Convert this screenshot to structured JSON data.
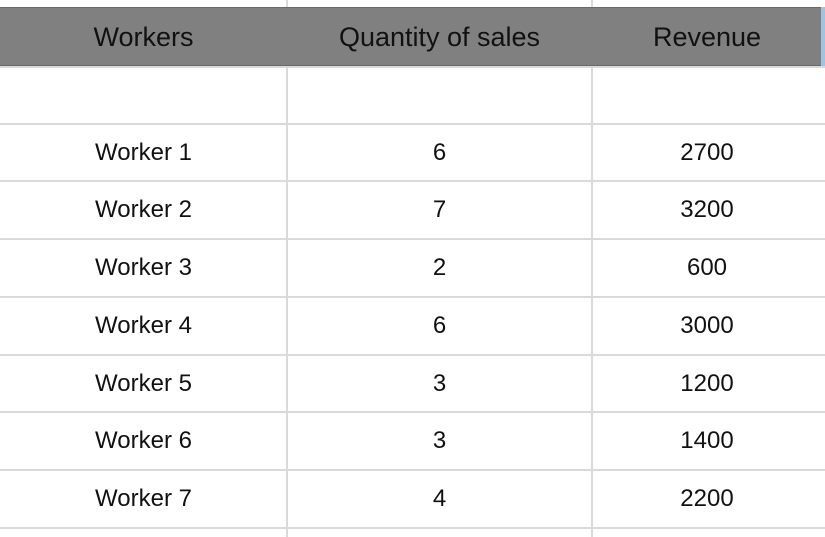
{
  "table": {
    "headers": [
      "Workers",
      "Quantity of sales",
      "Revenue"
    ],
    "rows": [
      [
        "",
        "",
        ""
      ],
      [
        "Worker 1",
        "6",
        "2700"
      ],
      [
        "Worker 2",
        "7",
        "3200"
      ],
      [
        "Worker 3",
        "2",
        "600"
      ],
      [
        "Worker 4",
        "6",
        "3000"
      ],
      [
        "Worker 5",
        "3",
        "1200"
      ],
      [
        "Worker 6",
        "3",
        "1400"
      ],
      [
        "Worker 7",
        "4",
        "2200"
      ]
    ]
  },
  "colors": {
    "header_bg": "#808080",
    "gridline": "#dadada",
    "selection": "#9dc3e6"
  }
}
